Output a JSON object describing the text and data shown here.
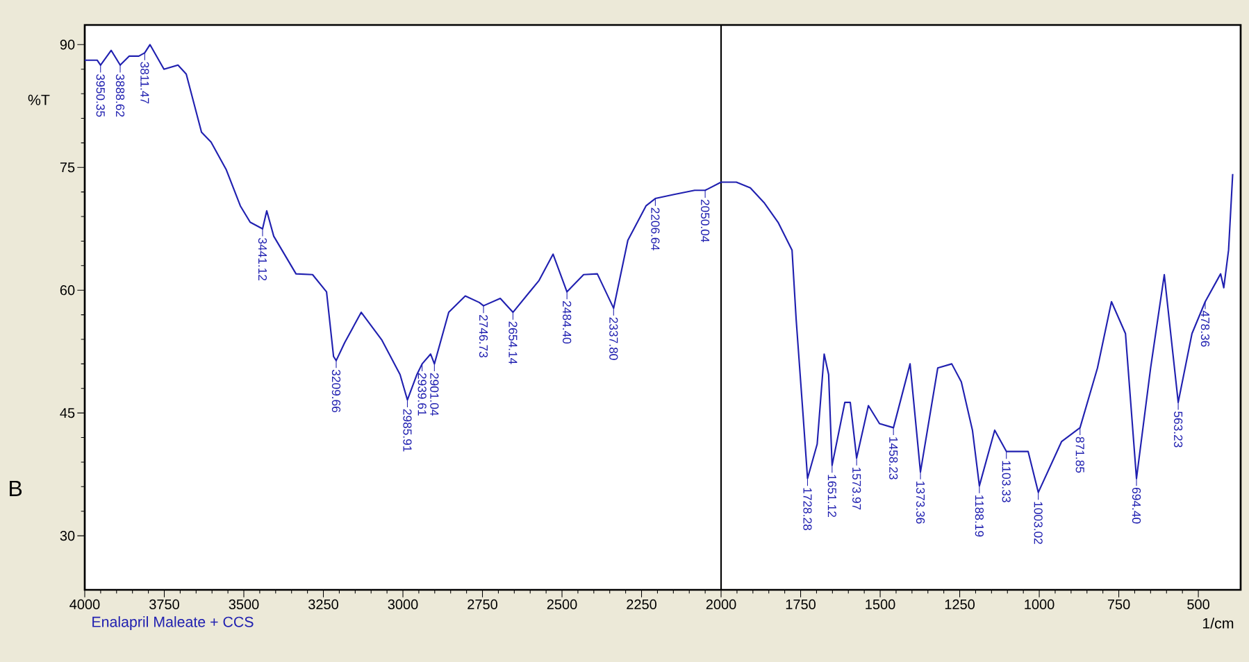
{
  "chart_data": {
    "type": "line",
    "xlabel": "1/cm",
    "ylabel": "%T",
    "xlim": [
      4000,
      367
    ],
    "ylim": [
      23.4,
      92.4
    ],
    "xticks": [
      4000,
      3750,
      3500,
      3250,
      3000,
      2750,
      2500,
      2250,
      2000,
      1750,
      1500,
      1250,
      1000,
      750,
      500
    ],
    "yticks": [
      30,
      45,
      60,
      75,
      90
    ],
    "grid": false,
    "marker": "none",
    "line_style": "solid",
    "ref_lines": [
      {
        "axis": "x",
        "value": 2000,
        "color": "#000000"
      }
    ],
    "series": [
      {
        "color": "#2020b0",
        "x": [
          4000,
          3961,
          3950.35,
          3917,
          3888.62,
          3860,
          3830,
          3811.47,
          3795,
          3751,
          3707,
          3681,
          3633,
          3603,
          3555,
          3511,
          3480,
          3441.12,
          3428,
          3406,
          3336,
          3284,
          3240,
          3218,
          3209.66,
          3183,
          3131,
          3066,
          3009,
          2985.91,
          2956,
          2939.61,
          2913,
          2901.04,
          2856,
          2804,
          2760,
          2746.73,
          2694,
          2654.14,
          2572,
          2528,
          2484.4,
          2432,
          2389,
          2337.8,
          2293,
          2236,
          2206.64,
          2148,
          2083,
          2050.04,
          2000,
          1952,
          1908,
          1865,
          1821,
          1777,
          1764,
          1742,
          1728.28,
          1698,
          1676,
          1662,
          1651.12,
          1611,
          1594,
          1573.97,
          1537,
          1502,
          1458.23,
          1406,
          1373.36,
          1319,
          1275,
          1245,
          1210,
          1188.19,
          1140,
          1103.33,
          1035,
          1003.02,
          930,
          871.85,
          817,
          773,
          729,
          694.4,
          650,
          607,
          563.23,
          520,
          478.36,
          430,
          420,
          405,
          392
        ],
        "values": [
          88.1,
          88.1,
          87.5,
          89.3,
          87.5,
          88.6,
          88.6,
          89.0,
          90.0,
          87.0,
          87.5,
          86.4,
          79.3,
          78.1,
          74.7,
          70.3,
          68.3,
          67.5,
          69.7,
          66.6,
          62.0,
          61.9,
          59.8,
          51.9,
          51.4,
          53.6,
          57.3,
          53.9,
          49.7,
          46.6,
          49.7,
          51.0,
          52.2,
          51.0,
          57.3,
          59.3,
          58.5,
          58.1,
          59.0,
          57.3,
          61.2,
          64.4,
          59.8,
          61.9,
          62.0,
          57.8,
          66.1,
          70.3,
          71.2,
          71.7,
          72.2,
          72.2,
          73.2,
          73.2,
          72.5,
          70.7,
          68.3,
          64.9,
          56.4,
          44.6,
          37.0,
          41.2,
          52.2,
          49.7,
          38.6,
          46.3,
          46.3,
          39.5,
          45.9,
          43.7,
          43.2,
          51.0,
          37.8,
          50.5,
          51.0,
          48.8,
          42.9,
          36.1,
          42.9,
          40.3,
          40.3,
          35.3,
          41.5,
          43.2,
          50.5,
          58.6,
          54.7,
          37.0,
          50.5,
          61.9,
          46.3,
          54.7,
          58.6,
          62.0,
          60.3,
          64.9,
          74.2
        ]
      }
    ],
    "annotations": [
      "B",
      "Enalapril Maleate + CCS",
      {
        "text": "3950.35",
        "x": 3950.35,
        "y": 87.5
      },
      {
        "text": "3888.62",
        "x": 3888.62,
        "y": 87.5
      },
      {
        "text": "3811.47",
        "x": 3811.47,
        "y": 89.0
      },
      {
        "text": "3441.12",
        "x": 3441.12,
        "y": 67.5
      },
      {
        "text": "3209.66",
        "x": 3209.66,
        "y": 51.4
      },
      {
        "text": "2985.91",
        "x": 2985.91,
        "y": 46.6
      },
      {
        "text": "2939.61",
        "x": 2939.61,
        "y": 51.0
      },
      {
        "text": "2901.04",
        "x": 2901.04,
        "y": 51.0
      },
      {
        "text": "2746.73",
        "x": 2746.73,
        "y": 58.1
      },
      {
        "text": "2654.14",
        "x": 2654.14,
        "y": 57.3
      },
      {
        "text": "2484.40",
        "x": 2484.4,
        "y": 59.8
      },
      {
        "text": "2337.80",
        "x": 2337.8,
        "y": 57.8
      },
      {
        "text": "2206.64",
        "x": 2206.64,
        "y": 71.2
      },
      {
        "text": "2050.04",
        "x": 2050.04,
        "y": 72.2
      },
      {
        "text": "1728.28",
        "x": 1728.28,
        "y": 37.0
      },
      {
        "text": "1651.12",
        "x": 1651.12,
        "y": 38.6
      },
      {
        "text": "1573.97",
        "x": 1573.97,
        "y": 39.5
      },
      {
        "text": "1458.23",
        "x": 1458.23,
        "y": 43.2
      },
      {
        "text": "1373.36",
        "x": 1373.36,
        "y": 37.8
      },
      {
        "text": "1188.19",
        "x": 1188.19,
        "y": 36.1
      },
      {
        "text": "1103.33",
        "x": 1103.33,
        "y": 40.3
      },
      {
        "text": "1003.02",
        "x": 1003.02,
        "y": 35.3
      },
      {
        "text": "871.85",
        "x": 871.85,
        "y": 43.2
      },
      {
        "text": "694.40",
        "x": 694.4,
        "y": 37.0
      },
      {
        "text": "563.23",
        "x": 563.23,
        "y": 46.3
      },
      {
        "text": "478.36",
        "x": 478.36,
        "y": 58.6
      }
    ]
  }
}
